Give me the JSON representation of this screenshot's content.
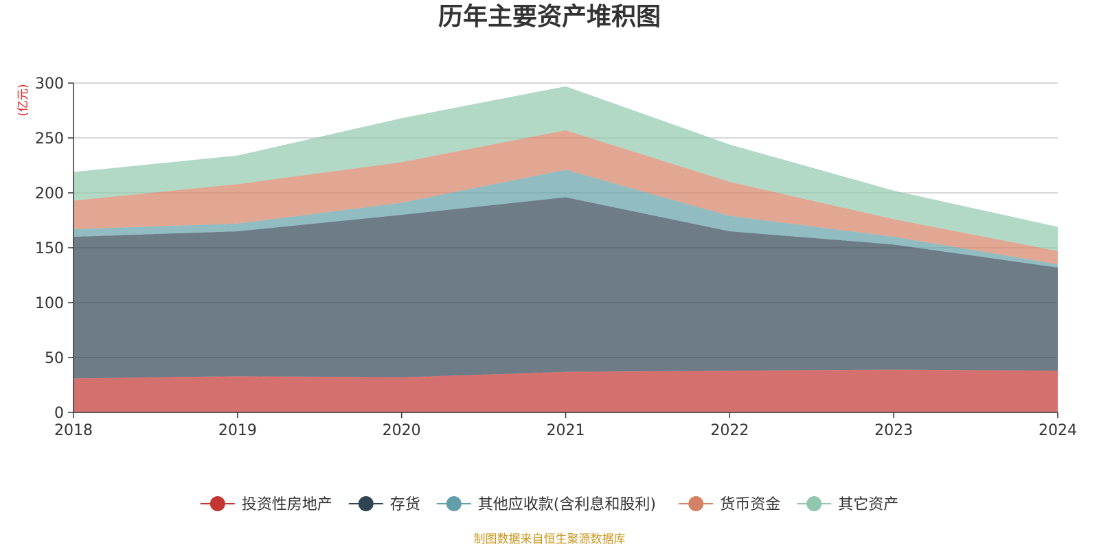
{
  "chart_data": {
    "type": "area",
    "stacked": true,
    "title": "历年主要资产堆积图",
    "unit_label": "(亿元)",
    "ylim": [
      0,
      300
    ],
    "y_ticks": [
      0,
      50,
      100,
      150,
      200,
      250,
      300
    ],
    "categories": [
      "2018",
      "2019",
      "2020",
      "2021",
      "2022",
      "2023",
      "2024"
    ],
    "series": [
      {
        "name": "投资性房地产",
        "color": "#c23531",
        "values": [
          31,
          33,
          32,
          37,
          38,
          39,
          38
        ]
      },
      {
        "name": "存货",
        "color": "#2f4554",
        "values": [
          129,
          132,
          148,
          159,
          127,
          114,
          94
        ]
      },
      {
        "name": "其他应收款(含利息和股利)",
        "color": "#61a0a8",
        "values": [
          7,
          7,
          11,
          25,
          14,
          7,
          3
        ]
      },
      {
        "name": "货币资金",
        "color": "#d48265",
        "values": [
          26,
          36,
          37,
          36,
          31,
          16,
          12
        ]
      },
      {
        "name": "其它资产",
        "color": "#91c7ae",
        "values": [
          26,
          26,
          40,
          40,
          34,
          26,
          22
        ]
      }
    ],
    "legend_position": "bottom-center",
    "grid": true,
    "source_note": "制图数据来自恒生聚源数据库"
  }
}
